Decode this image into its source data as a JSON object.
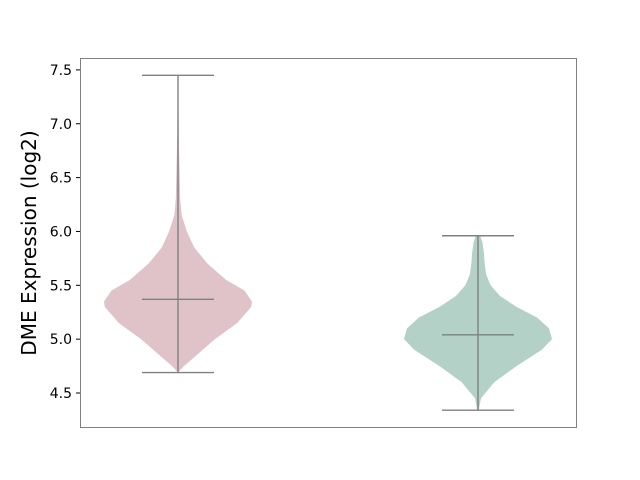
{
  "chart_data": {
    "type": "violin",
    "title": "",
    "xlabel": "",
    "ylabel": "DME Expression (log2)",
    "ylim": [
      4.2,
      7.61
    ],
    "yticks": [
      "4.5",
      "5.0",
      "5.5",
      "6.0",
      "6.5",
      "7.0",
      "7.5"
    ],
    "grid": false,
    "series": [
      {
        "color": "#dfc3c9",
        "min": 4.69,
        "max": 7.45,
        "median": 5.37,
        "density": [
          [
            4.69,
            0
          ],
          [
            4.75,
            0.08
          ],
          [
            4.85,
            0.25
          ],
          [
            5.0,
            0.5
          ],
          [
            5.15,
            0.8
          ],
          [
            5.3,
            0.99
          ],
          [
            5.35,
            1
          ],
          [
            5.45,
            0.9
          ],
          [
            5.55,
            0.65
          ],
          [
            5.7,
            0.4
          ],
          [
            5.85,
            0.22
          ],
          [
            6.0,
            0.12
          ],
          [
            6.15,
            0.05
          ],
          [
            6.3,
            0.03
          ],
          [
            6.6,
            0.02
          ],
          [
            6.9,
            0.01
          ],
          [
            7.45,
            0.004
          ]
        ]
      },
      {
        "color": "#b3d1c7",
        "min": 4.34,
        "max": 5.96,
        "median": 5.04,
        "density": [
          [
            4.34,
            0.01
          ],
          [
            4.45,
            0.04
          ],
          [
            4.6,
            0.22
          ],
          [
            4.75,
            0.52
          ],
          [
            4.9,
            0.86
          ],
          [
            5.0,
            1
          ],
          [
            5.1,
            0.96
          ],
          [
            5.2,
            0.8
          ],
          [
            5.3,
            0.52
          ],
          [
            5.4,
            0.3
          ],
          [
            5.5,
            0.17
          ],
          [
            5.6,
            0.11
          ],
          [
            5.7,
            0.09
          ],
          [
            5.8,
            0.08
          ],
          [
            5.9,
            0.06
          ],
          [
            5.96,
            0.03
          ]
        ]
      }
    ]
  }
}
